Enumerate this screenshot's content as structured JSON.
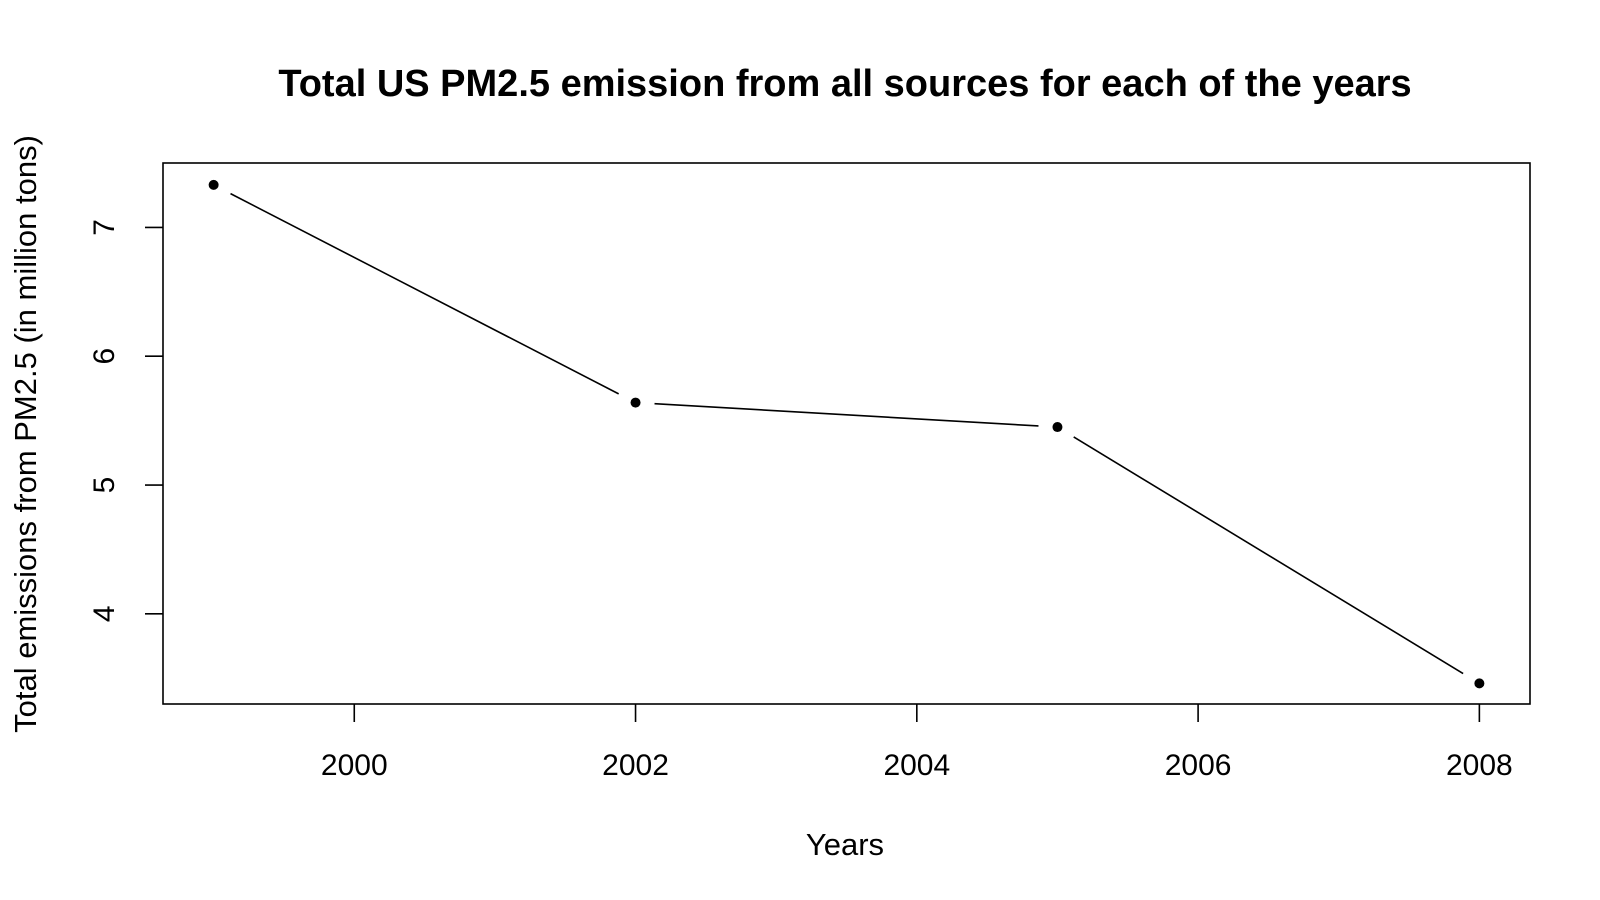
{
  "chart_data": {
    "type": "line",
    "title": "Total US PM2.5 emission from all sources for each of the years",
    "xlabel": "Years",
    "ylabel": "Total emissions from PM2.5 (in million tons)",
    "x": [
      1999,
      2002,
      2005,
      2008
    ],
    "series": [
      {
        "values": [
          7.33,
          5.64,
          5.45,
          3.46
        ]
      }
    ],
    "xlim": [
      1998.64,
      2008.36
    ],
    "ylim": [
      3.3,
      7.5
    ],
    "x_ticks": [
      2000,
      2002,
      2004,
      2006,
      2008
    ],
    "y_ticks": [
      4,
      5,
      6,
      7
    ],
    "x_tick_labels": [
      "2000",
      "2002",
      "2004",
      "2006",
      "2008"
    ],
    "y_tick_labels": [
      "4",
      "5",
      "6",
      "7"
    ],
    "grid": false,
    "legend": "none",
    "point_style": "filled-circle",
    "line_color": "#000000"
  }
}
